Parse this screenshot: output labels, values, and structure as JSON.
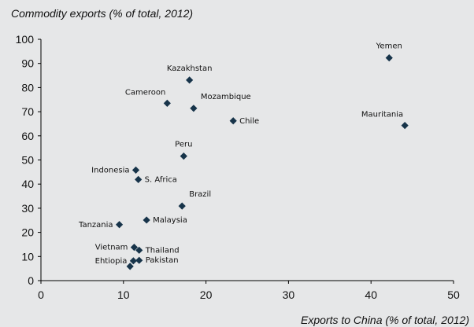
{
  "chart_data": {
    "type": "scatter",
    "title": "Commodity exports (% of total, 2012)",
    "xlabel": "Exports to China (% of total, 2012)",
    "ylabel": "",
    "xlim": [
      0,
      50
    ],
    "ylim": [
      0,
      100
    ],
    "xticks": [
      "0",
      "10",
      "20",
      "30",
      "40",
      "50"
    ],
    "yticks": [
      "0",
      "10",
      "20",
      "30",
      "40",
      "50",
      "60",
      "70",
      "80",
      "90",
      "100"
    ],
    "grid": false,
    "legend": "none",
    "marker_color": "#17344a",
    "axis_color": "#000000",
    "points": [
      {
        "label": "Yemen",
        "x": 42.2,
        "y": 92.3,
        "label_pos": "above"
      },
      {
        "label": "Kazakhstan",
        "x": 18.0,
        "y": 83.1,
        "label_pos": "above"
      },
      {
        "label": "Cameroon",
        "x": 15.3,
        "y": 73.5,
        "label_pos": "above-left"
      },
      {
        "label": "Mozambique",
        "x": 18.5,
        "y": 71.4,
        "label_pos": "above-right"
      },
      {
        "label": "Chile",
        "x": 23.3,
        "y": 66.2,
        "label_pos": "right"
      },
      {
        "label": "Mauritania",
        "x": 44.1,
        "y": 64.3,
        "label_pos": "above-left"
      },
      {
        "label": "Peru",
        "x": 17.3,
        "y": 51.6,
        "label_pos": "above"
      },
      {
        "label": "Indonesia",
        "x": 11.5,
        "y": 45.8,
        "label_pos": "left"
      },
      {
        "label": "S. Africa",
        "x": 11.8,
        "y": 41.9,
        "label_pos": "right"
      },
      {
        "label": "Brazil",
        "x": 17.1,
        "y": 30.9,
        "label_pos": "above-right"
      },
      {
        "label": "Malaysia",
        "x": 12.8,
        "y": 25.1,
        "label_pos": "right"
      },
      {
        "label": "Tanzania",
        "x": 9.5,
        "y": 23.2,
        "label_pos": "left"
      },
      {
        "label": "Vietnam",
        "x": 11.3,
        "y": 13.8,
        "label_pos": "left"
      },
      {
        "label": "Thailand",
        "x": 11.9,
        "y": 12.6,
        "label_pos": "right"
      },
      {
        "label": "Ehtiopia",
        "x": 11.2,
        "y": 8.2,
        "label_pos": "left"
      },
      {
        "label": "Pakistan",
        "x": 11.9,
        "y": 8.4,
        "label_pos": "right"
      },
      {
        "label": "",
        "x": 10.8,
        "y": 5.9,
        "label_pos": "none"
      }
    ]
  }
}
